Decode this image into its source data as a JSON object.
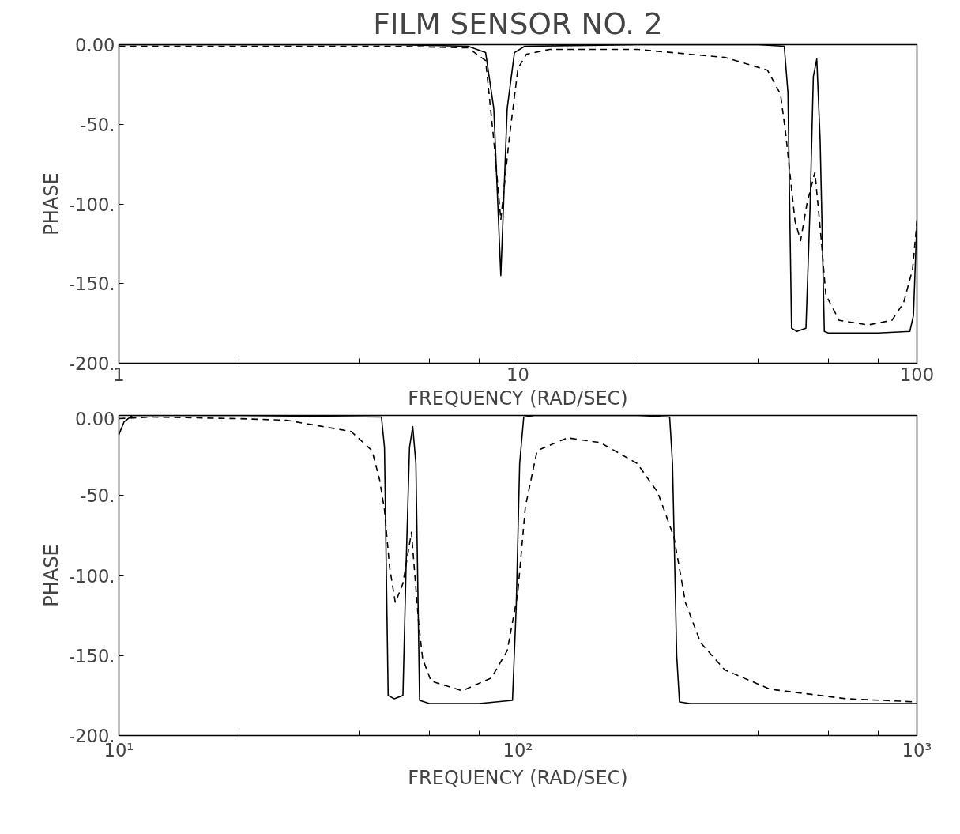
{
  "chart_data": [
    {
      "type": "line",
      "title": "FILM SENSOR NO. 2",
      "xlabel": "FREQUENCY (RAD/SEC)",
      "ylabel": "PHASE",
      "log": "x",
      "grid": false,
      "xlim": [
        1,
        100
      ],
      "xticks": [
        1,
        {
          "value": 2,
          "label": null
        },
        {
          "value": 4,
          "label": null
        },
        {
          "value": 6,
          "label": null
        },
        {
          "value": 8,
          "label": null
        },
        10,
        {
          "value": 20,
          "label": null
        },
        {
          "value": 40,
          "label": null
        },
        {
          "value": 60,
          "label": null
        },
        {
          "value": 80,
          "label": null
        },
        100
      ],
      "ylim": [
        -200,
        0
      ],
      "yticks": [
        {
          "value": 0,
          "label": "0.00"
        },
        {
          "value": -50,
          "label": "-50."
        },
        {
          "value": -100,
          "label": "-100."
        },
        {
          "value": -150,
          "label": "-150."
        },
        {
          "value": -200,
          "label": "-200."
        }
      ],
      "series": [
        {
          "color": "#000000",
          "line_style": "solid",
          "x": [
            1,
            5,
            7.5,
            8.3,
            8.7,
            9.06,
            9.4,
            9.8,
            10.4,
            20,
            40,
            46.5,
            47.5,
            48.5,
            50,
            52.7,
            54,
            55,
            56.1,
            57.2,
            58.6,
            60,
            80,
            96,
            98,
            100
          ],
          "values": [
            0,
            0,
            -1,
            -5,
            -40,
            -145,
            -40,
            -5,
            -1,
            0,
            0,
            -1,
            -30,
            -178,
            -180,
            -178,
            -100,
            -20,
            -9,
            -60,
            -180,
            -181,
            -181,
            -180,
            -170,
            -110
          ]
        },
        {
          "color": "#000000",
          "line_style": "dashed",
          "x": [
            1,
            5,
            7.5,
            8.3,
            8.7,
            9.06,
            9.5,
            10,
            10.5,
            12,
            20,
            33,
            42.2,
            45.5,
            46.9,
            48.2,
            49.5,
            51.1,
            53,
            55.5,
            57.5,
            59.1,
            63.8,
            75.3,
            86.6,
            92.6,
            97.5,
            100
          ],
          "values": [
            -1,
            -1,
            -2,
            -10,
            -60,
            -110,
            -60,
            -15,
            -6,
            -3,
            -3,
            -8,
            -16,
            -31,
            -56,
            -84,
            -111,
            -123,
            -100,
            -80,
            -121,
            -157,
            -173,
            -176,
            -173,
            -162,
            -141,
            -111
          ]
        }
      ]
    },
    {
      "type": "line",
      "xlabel": "FREQUENCY (RAD/SEC)",
      "ylabel": "PHASE",
      "log": "x",
      "grid": false,
      "xlim": [
        10,
        1000
      ],
      "xticks": [
        {
          "value": 10,
          "label": "10¹"
        },
        {
          "value": 20,
          "label": null
        },
        {
          "value": 40,
          "label": null
        },
        {
          "value": 60,
          "label": null
        },
        {
          "value": 80,
          "label": null
        },
        {
          "value": 100,
          "label": "10²"
        },
        {
          "value": 200,
          "label": null
        },
        {
          "value": 400,
          "label": null
        },
        {
          "value": 600,
          "label": null
        },
        {
          "value": 800,
          "label": null
        },
        {
          "value": 1000,
          "label": "10³"
        }
      ],
      "ylim": [
        -200,
        0
      ],
      "yticks": [
        {
          "value": 0,
          "label": "0.00"
        },
        {
          "value": -50,
          "label": "-50."
        },
        {
          "value": -100,
          "label": "-100."
        },
        {
          "value": -150,
          "label": "-150."
        },
        {
          "value": -200,
          "label": "-200."
        }
      ],
      "series": [
        {
          "color": "#000000",
          "line_style": "solid",
          "x": [
            10,
            10.3,
            10.8,
            20,
            45.5,
            46.3,
            47.3,
            49,
            51.5,
            52.5,
            53.5,
            54.5,
            55.5,
            56.7,
            60,
            80,
            96.9,
            99,
            101,
            103.4,
            110,
            200,
            240,
            244,
            250,
            254,
            270,
            500,
            1000
          ],
          "values": [
            -12,
            -4,
            0,
            0,
            -1,
            -20,
            -175,
            -177,
            -175,
            -90,
            -20,
            -7,
            -30,
            -178,
            -180,
            -180,
            -178,
            -120,
            -30,
            -1,
            0,
            0,
            -1,
            -30,
            -150,
            -179,
            -180,
            -180,
            -180
          ]
        },
        {
          "color": "#000000",
          "line_style": "dashed",
          "x": [
            10,
            12,
            20,
            26.3,
            38.2,
            43.1,
            45,
            46.3,
            47.7,
            49.3,
            51.5,
            54.1,
            56.4,
            57.7,
            60.6,
            72.5,
            85.8,
            94,
            99.8,
            104.4,
            111.7,
            133,
            161,
            199,
            224,
            246,
            263,
            287,
            330,
            428,
            664,
            1000
          ],
          "values": [
            -2,
            -1,
            -2,
            -3,
            -10,
            -22,
            -40,
            -59,
            -95,
            -117,
            -105,
            -73,
            -130,
            -152,
            -166,
            -172,
            -164,
            -147,
            -112,
            -57,
            -22,
            -14,
            -17,
            -30,
            -48,
            -76,
            -117,
            -142,
            -159,
            -171,
            -177,
            -179
          ]
        }
      ]
    }
  ]
}
